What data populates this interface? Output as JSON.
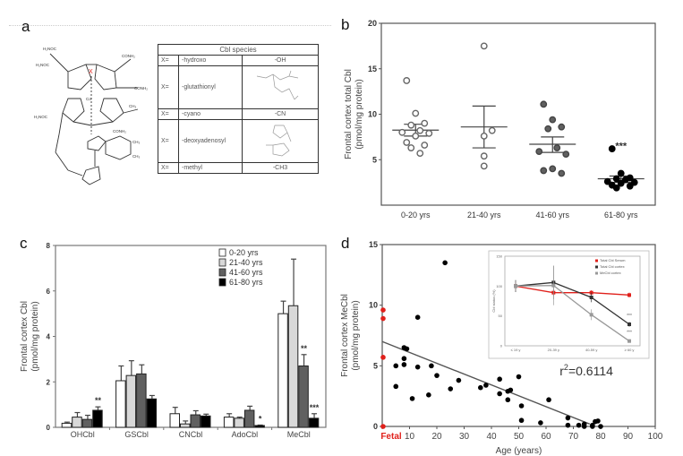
{
  "panel_labels": {
    "a": "a",
    "b": "b",
    "c": "c",
    "d": "d"
  },
  "panel_a": {
    "structure_label": "cobalamin structure",
    "x_marker": "X",
    "table": {
      "title": "Cbl species",
      "rows": [
        {
          "x": "X=",
          "name": "-hydroxo",
          "group": "-OH",
          "group_is_drawing": false
        },
        {
          "x": "X=",
          "name": "-glutathionyl",
          "group": "",
          "group_is_drawing": true
        },
        {
          "x": "X=",
          "name": "-cyano",
          "group": "-CN",
          "group_is_drawing": false
        },
        {
          "x": "X=",
          "name": "-deoxyadenosyl",
          "group": "",
          "group_is_drawing": true
        },
        {
          "x": "X=",
          "name": "-methyl",
          "group": "-CH3",
          "group_is_drawing": false
        }
      ]
    }
  },
  "chart_data": [
    {
      "id": "b",
      "type": "scatter",
      "title": "",
      "xlabel": "",
      "ylabel": "Frontal cortex total Cbl",
      "ylabel2": "(pmol/mg protein)",
      "ylim": [
        0,
        20
      ],
      "yticks": [
        "5",
        "10",
        "15",
        "20"
      ],
      "categories": [
        "0-20 yrs",
        "21-40 yrs",
        "41-60 yrs",
        "61-80 yrs"
      ],
      "groups": [
        {
          "name": "0-20 yrs",
          "style": "open",
          "values": [
            13.7,
            10.1,
            9.0,
            8.8,
            8.2,
            8.0,
            7.9,
            7.6,
            6.9,
            6.6,
            6.3,
            5.7
          ],
          "mean": 8.25,
          "sem_low": 7.6,
          "sem_high": 8.9
        },
        {
          "name": "21-40 yrs",
          "style": "open",
          "values": [
            17.5,
            8.2,
            7.6,
            5.4,
            4.3
          ],
          "mean": 8.6,
          "sem_low": 6.3,
          "sem_high": 10.9
        },
        {
          "name": "41-60 yrs",
          "style": "gray",
          "values": [
            11.1,
            9.4,
            8.6,
            8.4,
            6.3,
            5.9,
            5.6,
            4.0,
            3.8,
            3.5
          ],
          "mean": 6.7,
          "sem_low": 5.8,
          "sem_high": 7.5
        },
        {
          "name": "61-80 yrs",
          "style": "black",
          "values": [
            6.2,
            3.5,
            3.0,
            2.9,
            2.8,
            2.6,
            2.5,
            2.4,
            2.2,
            2.1,
            1.9
          ],
          "mean": 2.9,
          "sem_low": 2.5,
          "sem_high": 3.2,
          "annotation": "***"
        }
      ]
    },
    {
      "id": "c",
      "type": "bar",
      "title": "",
      "xlabel": "",
      "ylabel": "Frontal cortex Cbl",
      "ylabel2": "(pmol/mg protein)",
      "ylim": [
        0,
        8
      ],
      "yticks": [
        "0",
        "2",
        "4",
        "6",
        "8"
      ],
      "categories": [
        "OHCbl",
        "GSCbl",
        "CNCbl",
        "AdoCbl",
        "MeCbl"
      ],
      "legend_position": "top-right",
      "series": [
        {
          "name": "0-20 yrs",
          "color": "#ffffff",
          "values": [
            0.18,
            2.05,
            0.6,
            0.45,
            5.0
          ],
          "errors": [
            0.05,
            0.65,
            0.28,
            0.15,
            0.55
          ],
          "annotations": [
            "",
            "",
            "",
            "",
            ""
          ]
        },
        {
          "name": "21-40 yrs",
          "color": "#d8d8d8",
          "values": [
            0.45,
            2.28,
            0.15,
            0.4,
            5.35
          ],
          "errors": [
            0.2,
            0.65,
            0.13,
            0.05,
            2.05
          ],
          "annotations": [
            "",
            "",
            "",
            "",
            ""
          ]
        },
        {
          "name": "41-60 yrs",
          "color": "#606060",
          "values": [
            0.35,
            2.35,
            0.55,
            0.75,
            2.7
          ],
          "errors": [
            0.18,
            0.4,
            0.18,
            0.18,
            0.5
          ],
          "annotations": [
            "",
            "",
            "",
            "",
            "**"
          ]
        },
        {
          "name": "61-80 yrs",
          "color": "#000000",
          "values": [
            0.75,
            1.25,
            0.5,
            0.08,
            0.4
          ],
          "errors": [
            0.15,
            0.15,
            0.08,
            0.02,
            0.2
          ],
          "annotations": [
            "**",
            "",
            "",
            "*",
            "***"
          ]
        }
      ]
    },
    {
      "id": "d",
      "type": "scatter",
      "title": "",
      "xlabel": "Age (years)",
      "ylabel": "Frontal cortex MeCbl",
      "ylabel2": "(pmol/mg protein)",
      "xlim": [
        0,
        100
      ],
      "ylim": [
        0,
        15
      ],
      "xticks": [
        "Fetal",
        "10",
        "20",
        "30",
        "40",
        "50",
        "60",
        "70",
        "80",
        "90",
        "100"
      ],
      "yticks": [
        "0",
        "5",
        "10",
        "15"
      ],
      "fetal_label_color": "#e0201b",
      "fetal_points": [
        9.6,
        8.9,
        5.7,
        0.0
      ],
      "points": [
        [
          5,
          5.0
        ],
        [
          5,
          3.3
        ],
        [
          8,
          6.5
        ],
        [
          8,
          5.6
        ],
        [
          8,
          5.1
        ],
        [
          9,
          6.4
        ],
        [
          11,
          2.3
        ],
        [
          13,
          9.0
        ],
        [
          13,
          4.9
        ],
        [
          17,
          2.6
        ],
        [
          18,
          5.0
        ],
        [
          20,
          4.2
        ],
        [
          23,
          13.5
        ],
        [
          25,
          3.1
        ],
        [
          28,
          3.8
        ],
        [
          36,
          3.2
        ],
        [
          38,
          3.4
        ],
        [
          43,
          3.9
        ],
        [
          43,
          2.7
        ],
        [
          44,
          5.9
        ],
        [
          46,
          2.9
        ],
        [
          46,
          2.2
        ],
        [
          47,
          3.0
        ],
        [
          50,
          4.1
        ],
        [
          51,
          1.7
        ],
        [
          51,
          0.5
        ],
        [
          58,
          0.3
        ],
        [
          61,
          2.2
        ],
        [
          68,
          0.7
        ],
        [
          68,
          0.1
        ],
        [
          72,
          0.1
        ],
        [
          74,
          0.2
        ],
        [
          74,
          0.0
        ],
        [
          77,
          0.1
        ],
        [
          77,
          0.0
        ],
        [
          78,
          0.4
        ],
        [
          79,
          0.45
        ],
        [
          80,
          0.0
        ]
      ],
      "regression": {
        "x0": 0,
        "y0": 7.0,
        "x1": 76,
        "y1": 0.2
      },
      "annotation": "r",
      "annotation_sup": "2",
      "annotation_value": "=0.6114",
      "inset": {
        "type": "line",
        "ylabel": "Cbl status (%)",
        "ylim": [
          0,
          150
        ],
        "yticks": [
          "0",
          "50",
          "100",
          "150"
        ],
        "categories": [
          "≤ 19 y",
          "20-39 y",
          "40-59 y",
          "≥ 60 y"
        ],
        "series": [
          {
            "name": "Total Cbl Serum",
            "color": "#e0201b",
            "values": [
              100,
              89,
              89,
              85
            ],
            "errors": [
              8,
              5,
              4,
              4
            ]
          },
          {
            "name": "Total Cbl cortex",
            "color": "#333333",
            "values": [
              100,
              106,
              81,
              36
            ],
            "errors": [
              10,
              28,
              8,
              4
            ]
          },
          {
            "name": "MeCbl cortex",
            "color": "#999999",
            "values": [
              100,
              101,
              52,
              8
            ],
            "errors": [
              8,
              33,
              9,
              3
            ]
          }
        ],
        "annotations": [
          "***",
          "***"
        ]
      }
    }
  ]
}
